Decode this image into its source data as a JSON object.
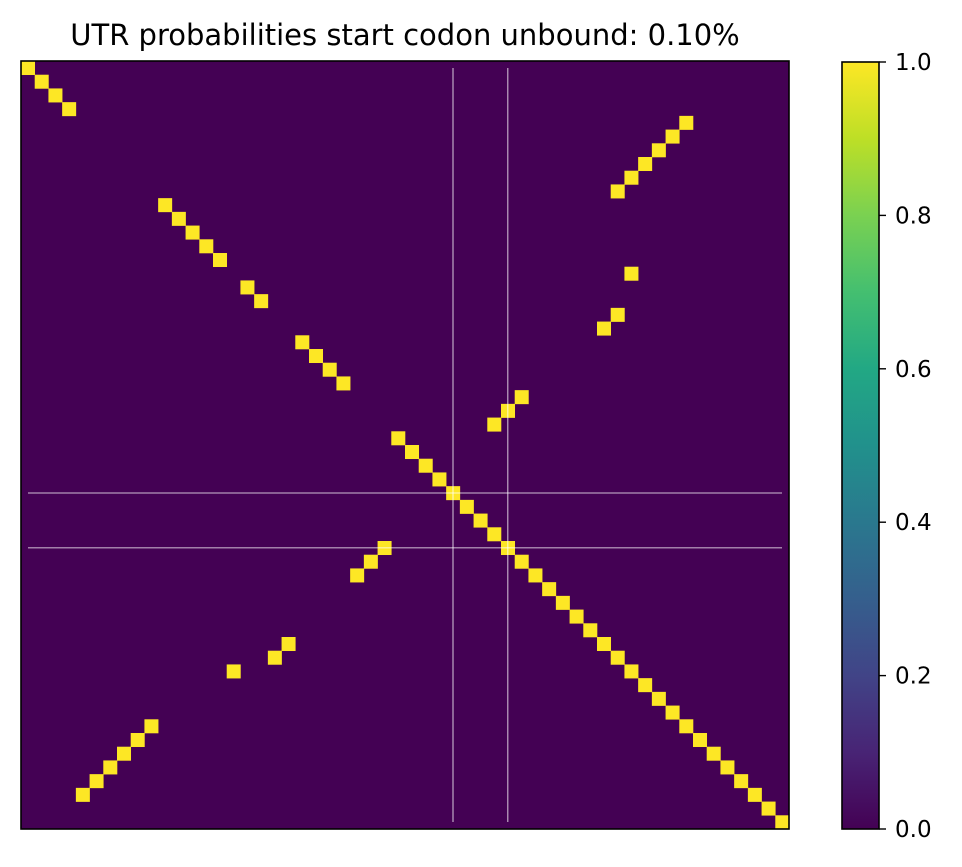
{
  "chart_data": {
    "type": "heatmap",
    "title": "UTR probabilities start codon unbound: 0.10%",
    "xlabel": "",
    "ylabel": "",
    "size": 56,
    "background_value": 0.0,
    "colormap": "viridis",
    "colors": {
      "low": "#440154",
      "high": "#fde725",
      "guide_lines": "#ffffff"
    },
    "guide_indices": [
      31,
      35
    ],
    "cells": [
      [
        0,
        0
      ],
      [
        1,
        1
      ],
      [
        2,
        2
      ],
      [
        3,
        3
      ],
      [
        4,
        48
      ],
      [
        5,
        47
      ],
      [
        6,
        46
      ],
      [
        7,
        45
      ],
      [
        8,
        44
      ],
      [
        9,
        43
      ],
      [
        10,
        10
      ],
      [
        11,
        11
      ],
      [
        12,
        12
      ],
      [
        13,
        13
      ],
      [
        14,
        14
      ],
      [
        15,
        44
      ],
      [
        16,
        16
      ],
      [
        17,
        17
      ],
      [
        18,
        43
      ],
      [
        19,
        42
      ],
      [
        20,
        20
      ],
      [
        21,
        21
      ],
      [
        22,
        22
      ],
      [
        23,
        23
      ],
      [
        24,
        36
      ],
      [
        25,
        35
      ],
      [
        26,
        34
      ],
      [
        27,
        27
      ],
      [
        28,
        28
      ],
      [
        29,
        29
      ],
      [
        30,
        30
      ],
      [
        31,
        31
      ],
      [
        32,
        32
      ],
      [
        33,
        33
      ],
      [
        34,
        34
      ],
      [
        35,
        35
      ],
      [
        35,
        26
      ],
      [
        36,
        25
      ],
      [
        37,
        24
      ],
      [
        36,
        36
      ],
      [
        37,
        37
      ],
      [
        38,
        38
      ],
      [
        39,
        39
      ],
      [
        40,
        40
      ],
      [
        41,
        41
      ],
      [
        42,
        42
      ],
      [
        43,
        43
      ],
      [
        44,
        44
      ],
      [
        45,
        45
      ],
      [
        46,
        46
      ],
      [
        47,
        47
      ],
      [
        48,
        48
      ],
      [
        49,
        49
      ],
      [
        50,
        50
      ],
      [
        51,
        51
      ],
      [
        52,
        52
      ],
      [
        53,
        53
      ],
      [
        54,
        54
      ],
      [
        55,
        55
      ],
      [
        42,
        19
      ],
      [
        43,
        18
      ],
      [
        44,
        15
      ],
      [
        48,
        9
      ],
      [
        49,
        8
      ],
      [
        50,
        7
      ],
      [
        51,
        6
      ],
      [
        52,
        5
      ],
      [
        53,
        4
      ]
    ],
    "colorbar": {
      "range": [
        0.0,
        1.0
      ],
      "ticks": [
        0.0,
        0.2,
        0.4,
        0.6,
        0.8,
        1.0
      ],
      "tick_labels": [
        "0.0",
        "0.2",
        "0.4",
        "0.6",
        "0.8",
        "1.0"
      ]
    }
  }
}
